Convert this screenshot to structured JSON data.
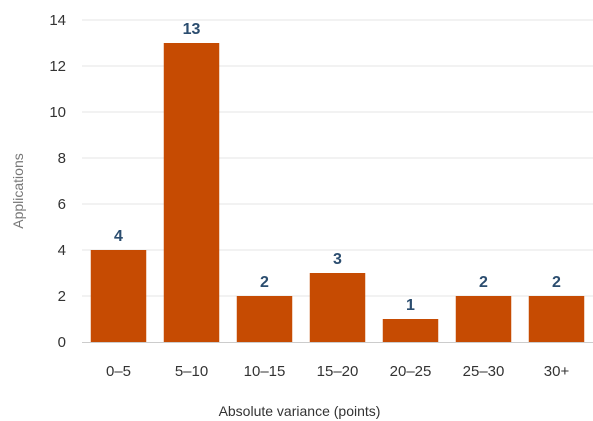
{
  "chart_data": {
    "type": "bar",
    "categories": [
      "0–5",
      "5–10",
      "10–15",
      "15–20",
      "20–25",
      "25–30",
      "30+"
    ],
    "values": [
      4,
      13,
      2,
      3,
      1,
      2,
      2
    ],
    "data_labels": [
      "4",
      "13",
      "2",
      "3",
      "1",
      "2",
      "2"
    ],
    "title": "",
    "xlabel": "Absolute variance (points)",
    "ylabel": "Applications",
    "ylim": [
      0,
      14
    ],
    "yticks": [
      0,
      2,
      4,
      6,
      8,
      10,
      12,
      14
    ],
    "ytick_labels": [
      "0",
      "2",
      "4",
      "6",
      "8",
      "10",
      "12",
      "14"
    ],
    "grid": true,
    "legend": "none",
    "colors": {
      "bar": "#c64b02",
      "data_label": "#2b4d6f",
      "gridline": "#e6e6e6",
      "axis_line": "#cccccc",
      "tick_text": "#333333",
      "ylabel_text": "#777777"
    }
  }
}
